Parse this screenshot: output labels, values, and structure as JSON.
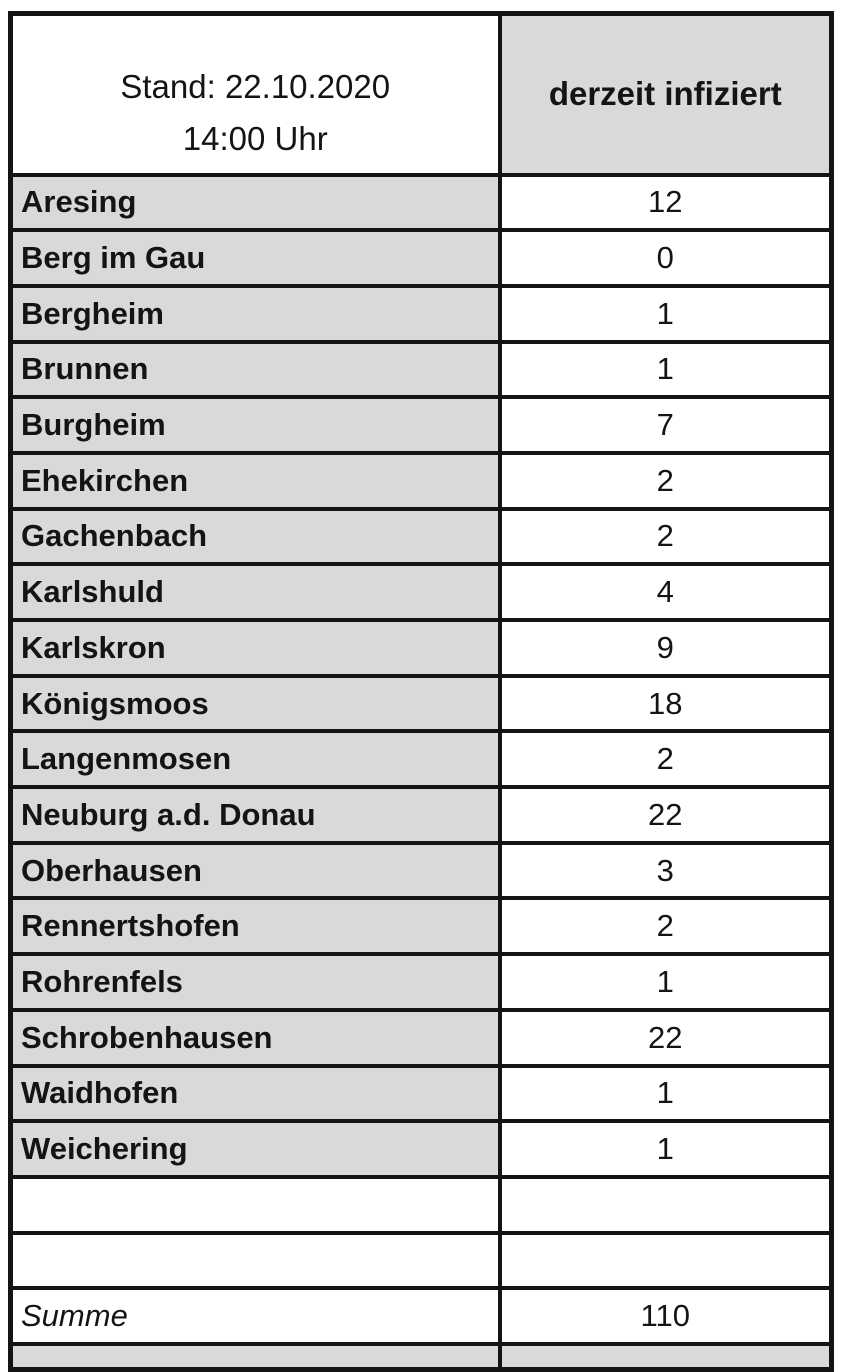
{
  "header": {
    "stand_line1": "Stand: 22.10.2020",
    "stand_line2": "14:00 Uhr",
    "value_column_label": "derzeit infiziert"
  },
  "rows": [
    {
      "name": "Aresing",
      "value": "12"
    },
    {
      "name": "Berg im Gau",
      "value": "0"
    },
    {
      "name": "Bergheim",
      "value": "1"
    },
    {
      "name": "Brunnen",
      "value": "1"
    },
    {
      "name": "Burgheim",
      "value": "7"
    },
    {
      "name": "Ehekirchen",
      "value": "2"
    },
    {
      "name": "Gachenbach",
      "value": "2"
    },
    {
      "name": "Karlshuld",
      "value": "4"
    },
    {
      "name": "Karlskron",
      "value": "9"
    },
    {
      "name": "Königsmoos",
      "value": "18"
    },
    {
      "name": "Langenmosen",
      "value": "2"
    },
    {
      "name": "Neuburg a.d. Donau",
      "value": "22"
    },
    {
      "name": "Oberhausen",
      "value": "3"
    },
    {
      "name": "Rennertshofen",
      "value": "2"
    },
    {
      "name": "Rohrenfels",
      "value": "1"
    },
    {
      "name": "Schrobenhausen",
      "value": "22"
    },
    {
      "name": "Waidhofen",
      "value": "1"
    },
    {
      "name": "Weichering",
      "value": "1"
    }
  ],
  "empty_row_count": 2,
  "summary": {
    "label": "Summe",
    "value": "110"
  },
  "colors": {
    "label_column_gray": "#d9d9d9",
    "header_value_gray": "#d9d9d9",
    "border_black": "#141414",
    "cell_white": "#ffffff"
  }
}
